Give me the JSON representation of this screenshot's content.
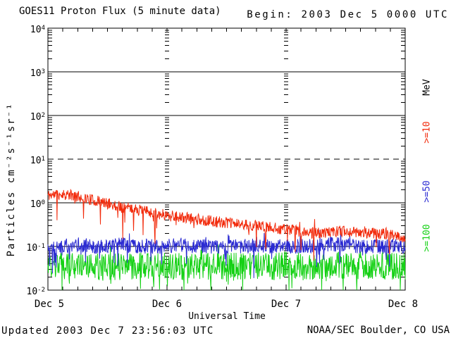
{
  "title": "GOES11 Proton Flux (5 minute data)",
  "begin_label": "Begin: 2003 Dec 5 0000 UTC",
  "footer": {
    "updated": "Updated 2003 Dec  7 23:56:03 UTC",
    "source": "NOAA/SEC Boulder, CO USA"
  },
  "colors": {
    "red": "#f22b0c",
    "blue": "#2a2ad2",
    "green": "#15d115",
    "axis": "#000000",
    "background": "#ffffff"
  },
  "yaxis": {
    "label": "Particles cm⁻²s⁻¹sr⁻¹",
    "ticks": [
      {
        "base": "10",
        "exp": "4"
      },
      {
        "base": "10",
        "exp": "3"
      },
      {
        "base": "10",
        "exp": "2"
      },
      {
        "base": "10",
        "exp": "1"
      },
      {
        "base": "10",
        "exp": "0"
      },
      {
        "base": "10",
        "exp": "-1"
      },
      {
        "base": "10",
        "exp": "-2"
      }
    ]
  },
  "xaxis": {
    "label": "Universal Time",
    "ticks": [
      "Dec 5",
      "Dec 6",
      "Dec 7",
      "Dec 8"
    ]
  },
  "legend": {
    "units": "MeV",
    "items": [
      {
        "label": ">=10",
        "color": "#f22b0c"
      },
      {
        "label": ">=50",
        "color": "#2a2ad2"
      },
      {
        "label": ">=100",
        "color": "#15d115"
      }
    ]
  },
  "chart_data": {
    "type": "line",
    "title": "GOES11 Proton Flux (5 minute data)",
    "xlabel": "Universal Time",
    "ylabel": "Particles cm^-2 s^-1 sr^-1",
    "y_scale": "log",
    "ylim": [
      0.01,
      10000
    ],
    "x_tick_labels": [
      "Dec 5",
      "Dec 6",
      "Dec 7",
      "Dec 8"
    ],
    "x_units": "hours since 2003 Dec 5 0000 UTC",
    "cadence_minutes": 5,
    "gridlines": {
      "solid": [
        1000,
        100,
        1,
        0.1
      ],
      "dashed": [
        10
      ]
    },
    "x": [
      0,
      3,
      6,
      9,
      12,
      15,
      18,
      21,
      24,
      27,
      30,
      33,
      36,
      39,
      42,
      45,
      48,
      51,
      54,
      57,
      60,
      63,
      66,
      69,
      72
    ],
    "values_note": "trend of very noisy 5-minute flux; noise_log10 is approx half-width of scatter band in decades",
    "series": [
      {
        "key": "ge10",
        "name": ">=10 MeV",
        "color": "#f22b0c",
        "noise_log10": 0.13,
        "values": [
          1.5,
          1.6,
          1.4,
          1.15,
          0.95,
          0.8,
          0.7,
          0.6,
          0.52,
          0.46,
          0.42,
          0.38,
          0.35,
          0.32,
          0.3,
          0.27,
          0.25,
          0.22,
          0.2,
          0.21,
          0.23,
          0.21,
          0.2,
          0.19,
          0.15
        ]
      },
      {
        "key": "ge50",
        "name": ">=50 MeV",
        "color": "#2a2ad2",
        "noise_log10": 0.17,
        "values": [
          0.1,
          0.1,
          0.11,
          0.1,
          0.1,
          0.11,
          0.1,
          0.1,
          0.1,
          0.11,
          0.1,
          0.1,
          0.1,
          0.1,
          0.11,
          0.1,
          0.1,
          0.1,
          0.1,
          0.11,
          0.11,
          0.1,
          0.1,
          0.1,
          0.1
        ]
      },
      {
        "key": "ge100",
        "name": ">=100 MeV",
        "color": "#15d115",
        "noise_log10": 0.32,
        "values": [
          0.035,
          0.034,
          0.036,
          0.035,
          0.034,
          0.035,
          0.036,
          0.035,
          0.034,
          0.035,
          0.035,
          0.036,
          0.034,
          0.035,
          0.035,
          0.034,
          0.036,
          0.035,
          0.035,
          0.036,
          0.038,
          0.037,
          0.036,
          0.035,
          0.034
        ]
      }
    ]
  }
}
